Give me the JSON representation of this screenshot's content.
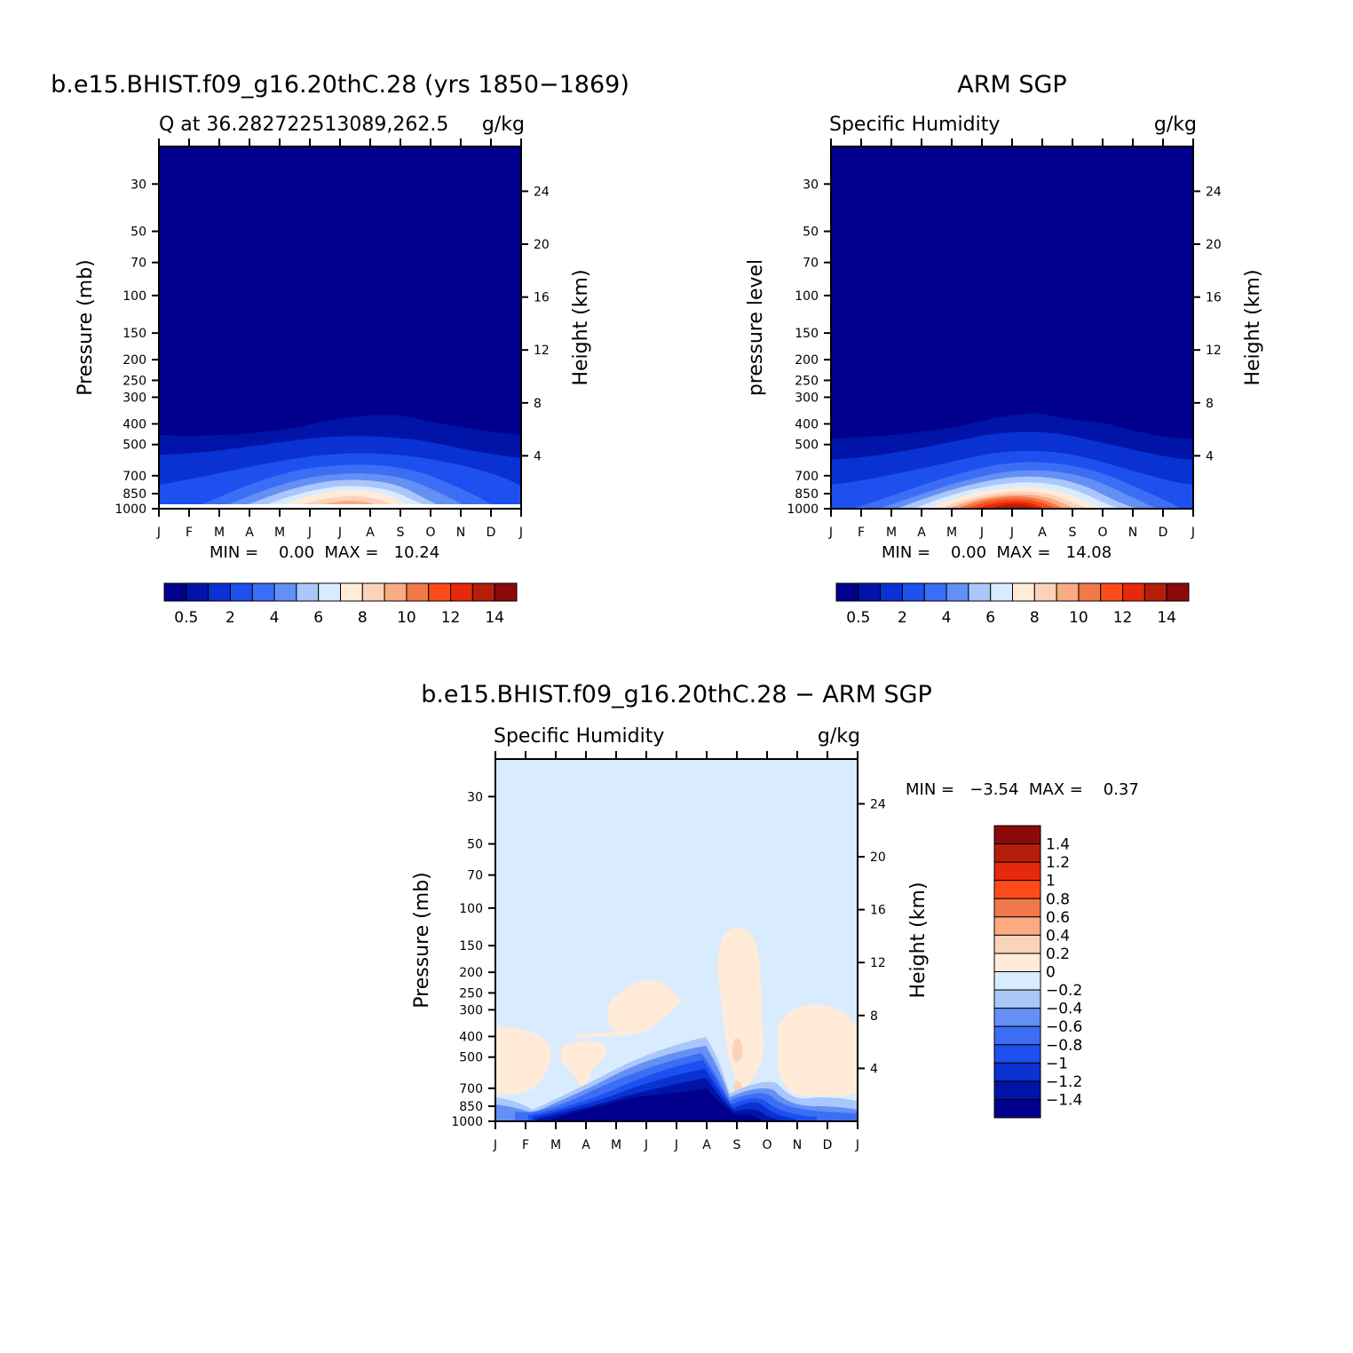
{
  "colors": {
    "blues": [
      "#00008c",
      "#0014a8",
      "#0a32d2",
      "#1e50f0",
      "#3c6ef5",
      "#6490f5",
      "#aac6fa",
      "#d9ecff"
    ],
    "reds": [
      "#ffebd7",
      "#fcd2bb",
      "#fcaa82",
      "#f0784a",
      "#ff4b1a",
      "#e6280c",
      "#b41e0a",
      "#8c0a0a"
    ]
  },
  "chart_data": [
    {
      "type": "heatmap",
      "panel": "left",
      "title": "b.e15.BHIST.f09_g16.20thC.28 (yrs 1850−1869)",
      "subtitle_left": "Q at 36.282722513089,262.5",
      "subtitle_right": "g/kg",
      "xlabel": "",
      "ylabel": "Pressure (mb)",
      "ylabel_right": "Height (km)",
      "x_ticks": [
        "J",
        "F",
        "M",
        "A",
        "M",
        "J",
        "J",
        "A",
        "S",
        "O",
        "N",
        "D",
        "J"
      ],
      "y_ticks": [
        "30",
        "50",
        "70",
        "100",
        "150",
        "200",
        "250",
        "300",
        "400",
        "500",
        "700",
        "850",
        "1000"
      ],
      "y_right_ticks": [
        "24",
        "20",
        "16",
        "12",
        "8",
        "4"
      ],
      "ylim": [
        1000,
        20
      ],
      "y_scale": "log",
      "minmax": "MIN =    0.00  MAX =   10.24",
      "min": 0.0,
      "max": 10.24,
      "colorbar": {
        "orientation": "horizontal",
        "labels": [
          "0.5",
          "2",
          "4",
          "6",
          "8",
          "10",
          "12",
          "14"
        ]
      }
    },
    {
      "type": "heatmap",
      "panel": "right",
      "title": "ARM SGP",
      "subtitle_left": "Specific Humidity",
      "subtitle_right": "g/kg",
      "xlabel": "",
      "ylabel": "pressure level",
      "ylabel_right": "Height (km)",
      "x_ticks": [
        "J",
        "F",
        "M",
        "A",
        "M",
        "J",
        "J",
        "A",
        "S",
        "O",
        "N",
        "D",
        "J"
      ],
      "y_ticks": [
        "30",
        "50",
        "70",
        "100",
        "150",
        "200",
        "250",
        "300",
        "400",
        "500",
        "700",
        "850",
        "1000"
      ],
      "y_right_ticks": [
        "24",
        "20",
        "16",
        "12",
        "8",
        "4"
      ],
      "ylim": [
        1000,
        20
      ],
      "y_scale": "log",
      "minmax": "MIN =    0.00  MAX =   14.08",
      "min": 0.0,
      "max": 14.08,
      "colorbar": {
        "orientation": "horizontal",
        "labels": [
          "0.5",
          "2",
          "4",
          "6",
          "8",
          "10",
          "12",
          "14"
        ]
      }
    },
    {
      "type": "heatmap",
      "panel": "difference",
      "title": "b.e15.BHIST.f09_g16.20thC.28 − ARM SGP",
      "subtitle_left": "Specific Humidity",
      "subtitle_right": "g/kg",
      "xlabel": "",
      "ylabel": "Pressure (mb)",
      "ylabel_right": "Height (km)",
      "x_ticks": [
        "J",
        "F",
        "M",
        "A",
        "M",
        "J",
        "J",
        "A",
        "S",
        "O",
        "N",
        "D",
        "J"
      ],
      "y_ticks": [
        "30",
        "50",
        "70",
        "100",
        "150",
        "200",
        "250",
        "300",
        "400",
        "500",
        "700",
        "850",
        "1000"
      ],
      "y_right_ticks": [
        "24",
        "20",
        "16",
        "12",
        "8",
        "4"
      ],
      "ylim": [
        1000,
        20
      ],
      "y_scale": "log",
      "minmax": "MIN =   −3.54  MAX =    0.37",
      "min": -3.54,
      "max": 0.37,
      "colorbar": {
        "orientation": "vertical",
        "labels": [
          "1.4",
          "1.2",
          "1",
          "0.8",
          "0.6",
          "0.4",
          "0.2",
          "0",
          "−0.2",
          "−0.4",
          "−0.6",
          "−0.8",
          "−1",
          "−1.2",
          "−1.4"
        ]
      }
    }
  ]
}
